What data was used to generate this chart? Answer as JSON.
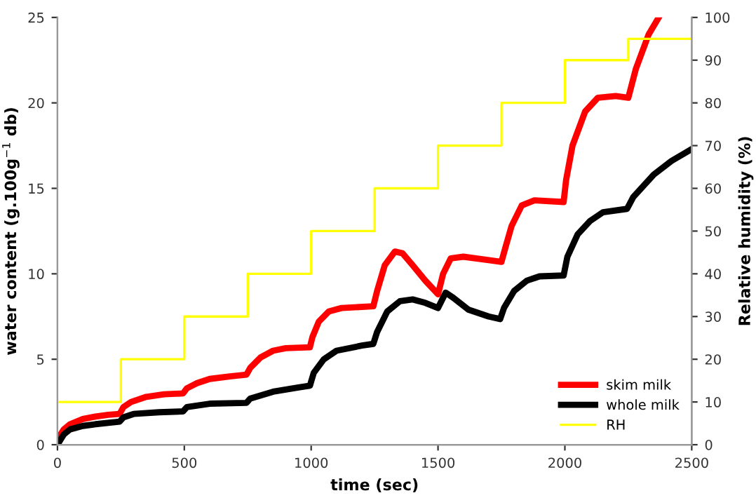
{
  "chart_data": {
    "type": "line",
    "xlabel": "time (sec)",
    "ylabel": "water content (g.100g$^{−1}$ db)",
    "y2label": "Relative humidity (%)",
    "xlim": [
      0,
      2500
    ],
    "xticks": [
      0,
      500,
      1000,
      1500,
      2000,
      2500
    ],
    "ylim": [
      0,
      25
    ],
    "yticks": [
      0,
      5,
      10,
      15,
      20,
      25
    ],
    "y2lim": [
      0,
      100
    ],
    "y2ticks": [
      0,
      10,
      20,
      30,
      40,
      50,
      60,
      70,
      80,
      90,
      100
    ],
    "grid": false,
    "legend": "bottom right",
    "marker": "none",
    "line_style": "solid",
    "series": [
      {
        "name": "skim milk",
        "color": "#ff0000",
        "x": [
          0,
          25,
          50,
          100,
          150,
          200,
          245,
          260,
          290,
          350,
          420,
          495,
          510,
          550,
          600,
          680,
          745,
          760,
          800,
          850,
          900,
          995,
          1005,
          1030,
          1070,
          1120,
          1245,
          1260,
          1290,
          1330,
          1360,
          1400,
          1450,
          1500,
          1520,
          1550,
          1600,
          1700,
          1750,
          1765,
          1790,
          1830,
          1880,
          1995,
          2005,
          2030,
          2080,
          2130,
          2200,
          2250,
          2280,
          2330,
          2370
        ],
        "values": [
          0.3,
          0.9,
          1.2,
          1.5,
          1.65,
          1.75,
          1.8,
          2.2,
          2.5,
          2.8,
          2.95,
          3.0,
          3.3,
          3.6,
          3.85,
          4.0,
          4.1,
          4.5,
          5.1,
          5.5,
          5.65,
          5.7,
          6.3,
          7.2,
          7.8,
          8.0,
          8.1,
          9.0,
          10.5,
          11.3,
          11.2,
          10.5,
          9.6,
          8.8,
          10.0,
          10.9,
          11.0,
          10.8,
          10.7,
          11.5,
          12.8,
          14.0,
          14.3,
          14.2,
          15.5,
          17.5,
          19.5,
          20.3,
          20.4,
          20.3,
          22.0,
          24.0,
          25
        ]
      },
      {
        "name": "whole milk",
        "color": "#000000",
        "x": [
          0,
          25,
          50,
          100,
          150,
          245,
          260,
          300,
          400,
          495,
          510,
          600,
          745,
          760,
          850,
          950,
          995,
          1010,
          1050,
          1100,
          1200,
          1245,
          1260,
          1300,
          1350,
          1400,
          1450,
          1500,
          1530,
          1560,
          1620,
          1700,
          1745,
          1760,
          1800,
          1850,
          1900,
          1995,
          2010,
          2050,
          2100,
          2150,
          2245,
          2270,
          2350,
          2420,
          2500
        ],
        "values": [
          0,
          0.6,
          0.9,
          1.1,
          1.2,
          1.35,
          1.6,
          1.8,
          1.9,
          1.95,
          2.2,
          2.4,
          2.45,
          2.7,
          3.1,
          3.35,
          3.45,
          4.2,
          5.0,
          5.5,
          5.8,
          5.9,
          6.6,
          7.8,
          8.4,
          8.5,
          8.3,
          8.0,
          8.9,
          8.6,
          7.9,
          7.5,
          7.35,
          8.0,
          9.0,
          9.6,
          9.85,
          9.9,
          11.0,
          12.3,
          13.1,
          13.6,
          13.8,
          14.5,
          15.8,
          16.6,
          17.3
        ]
      },
      {
        "name": "RH",
        "color": "#ffff00",
        "type": "step",
        "axis": "y2",
        "x": [
          0,
          250,
          500,
          750,
          1000,
          1250,
          1500,
          1750,
          2000,
          2250,
          2500
        ],
        "values": [
          10,
          20,
          30,
          40,
          50,
          60,
          70,
          80,
          90,
          95,
          95
        ]
      }
    ]
  }
}
